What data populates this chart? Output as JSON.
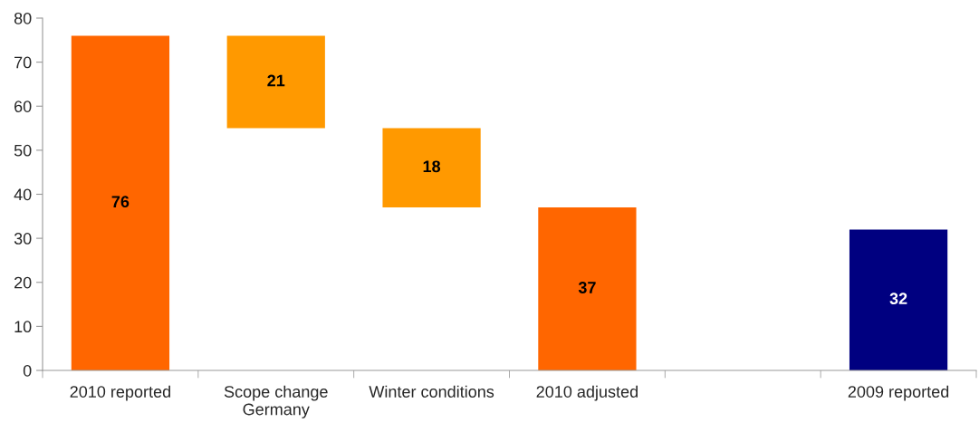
{
  "chart_data": {
    "type": "bar",
    "categories": [
      "2010 reported",
      "Scope change\nGermany",
      "Winter conditions",
      "2010 adjusted",
      null,
      "2009 reported"
    ],
    "values": [
      76,
      21,
      18,
      37,
      null,
      32
    ],
    "base": [
      0,
      55,
      37,
      0,
      null,
      0
    ],
    "colors": [
      "#ff6600",
      "#ff9900",
      "#ff9900",
      "#ff6600",
      null,
      "#000080"
    ],
    "ylim": [
      0,
      80
    ],
    "yticks": [
      0,
      10,
      20,
      30,
      40,
      50,
      60,
      70,
      80
    ],
    "data_labels": true,
    "grid": false,
    "legend": false
  }
}
